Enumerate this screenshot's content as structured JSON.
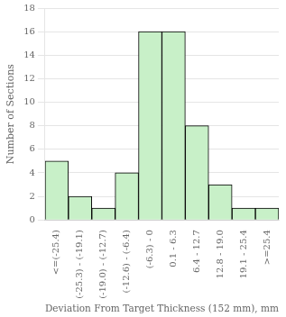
{
  "chart_data": {
    "type": "bar",
    "categories": [
      "<=(-25.4)",
      "(-25.3) - (-19.1)",
      "(-19.0) - (-12.7)",
      "(-12.6) - (-6.4)",
      "(-6.3) - 0",
      "0.1 - 6.3",
      "6.4 - 12.7",
      "12.8 - 19.0",
      "19.1 - 25.4",
      ">=25.4"
    ],
    "values": [
      5,
      2,
      1,
      4,
      16,
      16,
      8,
      3,
      1,
      1
    ],
    "color": "#c8f0c8",
    "xlabel": "Deviation From Target Thickness (152 mm), mm",
    "ylabel": "Number of Sections",
    "ylim": [
      0,
      18
    ],
    "yticks": [
      0,
      2,
      4,
      6,
      8,
      10,
      12,
      14,
      16,
      18
    ],
    "grid": true
  }
}
